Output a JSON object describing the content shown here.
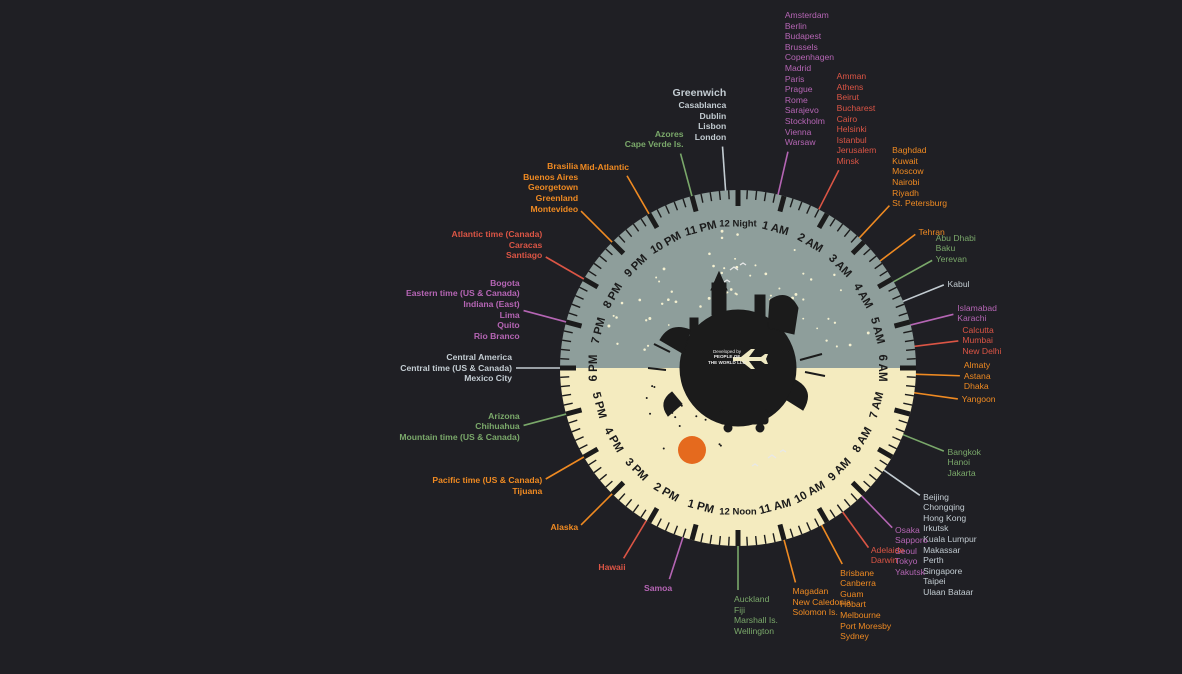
{
  "credit": {
    "line1": "Developed by",
    "line2": "PEOPLE OF",
    "line3": "THE WORLD LLC"
  },
  "colors": {
    "background": "#1f1f24",
    "night": "#8e9e9b",
    "day": "#f4ebbf",
    "sun": "#e56a1e",
    "moon": "#efe9c2",
    "ink": "#1b1b1b",
    "purple": "#b565b4",
    "red": "#db5545",
    "orange": "#ef8a22",
    "green": "#7aa86a",
    "slate": "#c3ccd2"
  },
  "hours": [
    {
      "label": "12 Night",
      "angle": 0
    },
    {
      "label": "1 AM",
      "angle": 15
    },
    {
      "label": "2 AM",
      "angle": 30
    },
    {
      "label": "3 AM",
      "angle": 45
    },
    {
      "label": "4 AM",
      "angle": 60
    },
    {
      "label": "5 AM",
      "angle": 75
    },
    {
      "label": "6 AM",
      "angle": 90
    },
    {
      "label": "7 AM",
      "angle": 105
    },
    {
      "label": "8 AM",
      "angle": 120
    },
    {
      "label": "9 AM",
      "angle": 135
    },
    {
      "label": "10 AM",
      "angle": 150
    },
    {
      "label": "11 AM",
      "angle": 165
    },
    {
      "label": "12 Noon",
      "angle": 180
    },
    {
      "label": "1 PM",
      "angle": 195
    },
    {
      "label": "2 PM",
      "angle": 210
    },
    {
      "label": "3 PM",
      "angle": 225
    },
    {
      "label": "4 PM",
      "angle": 240
    },
    {
      "label": "5 PM",
      "angle": 255
    },
    {
      "label": "6 PM",
      "angle": 270
    },
    {
      "label": "7 PM",
      "angle": 285
    },
    {
      "label": "8 PM",
      "angle": 300
    },
    {
      "label": "9 PM",
      "angle": 315
    },
    {
      "label": "10 PM",
      "angle": 330
    },
    {
      "label": "11 PM",
      "angle": 345
    }
  ],
  "zones": [
    {
      "id": "greenwich",
      "color": "slate",
      "angle": -4,
      "lines": [
        "Greenwich",
        "Casablanca",
        "Dublin",
        "Lisbon",
        "London"
      ]
    },
    {
      "id": "europe-central",
      "color": "purple",
      "angle": 13,
      "lines": [
        "Amsterdam",
        "Berlin",
        "Budapest",
        "Brussels",
        "Copenhagen",
        "Madrid",
        "Paris",
        "Prague",
        "Rome",
        "Sarajevo",
        "Stockholm",
        "Vienna",
        "Warsaw"
      ]
    },
    {
      "id": "europe-east",
      "color": "red",
      "angle": 27,
      "lines": [
        "Amman",
        "Athens",
        "Beirut",
        "Bucharest",
        "Cairo",
        "Helsinki",
        "Istanbul",
        "Jerusalem",
        "Minsk"
      ]
    },
    {
      "id": "moscow",
      "color": "orange",
      "angle": 43,
      "lines": [
        "Baghdad",
        "Kuwait",
        "Moscow",
        "Nairobi",
        "Riyadh",
        "St. Petersburg"
      ]
    },
    {
      "id": "tehran",
      "color": "orange",
      "angle": 53,
      "lines": [
        "Tehran"
      ]
    },
    {
      "id": "gulf",
      "color": "green",
      "angle": 61,
      "lines": [
        "Abu Dhabi",
        "Baku",
        "Yerevan"
      ]
    },
    {
      "id": "kabul",
      "color": "slate",
      "angle": 68,
      "lines": [
        "Kabul"
      ]
    },
    {
      "id": "pakistan",
      "color": "purple",
      "angle": 76,
      "lines": [
        "Islamabad",
        "Karachi"
      ]
    },
    {
      "id": "india",
      "color": "red",
      "angle": 83,
      "lines": [
        "Calcutta",
        "Mumbai",
        "New Delhi"
      ]
    },
    {
      "id": "almaty",
      "color": "orange",
      "angle": 92,
      "lines": [
        "Almaty",
        "Astana",
        "Dhaka"
      ]
    },
    {
      "id": "yangoon",
      "color": "orange",
      "angle": 98,
      "lines": [
        "Yangoon"
      ]
    },
    {
      "id": "bangkok",
      "color": "green",
      "angle": 112,
      "lines": [
        "Bangkok",
        "Hanoi",
        "Jakarta"
      ]
    },
    {
      "id": "beijing",
      "color": "slate",
      "angle": 125,
      "lines": [
        "Beijing",
        "Chongqing",
        "Hong Kong",
        "Irkutsk",
        "Kuala Lumpur",
        "Makassar",
        "Perth",
        "Singapore",
        "Taipei",
        "Ulaan Bataar"
      ]
    },
    {
      "id": "tokyo",
      "color": "purple",
      "angle": 136,
      "lines": [
        "Osaka",
        "Sapporo",
        "Seoul",
        "Tokyo",
        "Yakutsk"
      ]
    },
    {
      "id": "adelaide",
      "color": "red",
      "angle": 144,
      "lines": [
        "Adelaide",
        "Darwin"
      ]
    },
    {
      "id": "sydney",
      "color": "orange",
      "angle": 152,
      "lines": [
        "Brisbane",
        "Canberra",
        "Guam",
        "Hobart",
        "Melbourne",
        "Port Moresby",
        "Sydney"
      ]
    },
    {
      "id": "magadan",
      "color": "orange",
      "angle": 165,
      "lines": [
        "Magadan",
        "New Caledonia",
        "Solomon Is."
      ]
    },
    {
      "id": "auckland",
      "color": "green",
      "angle": 180,
      "lines": [
        "Auckland",
        "Fiji",
        "Marshall Is.",
        "Wellington"
      ]
    },
    {
      "id": "samoa",
      "color": "purple",
      "angle": 198,
      "lines": [
        "Samoa"
      ]
    },
    {
      "id": "hawaii",
      "color": "red",
      "angle": 211,
      "lines": [
        "Hawaii"
      ]
    },
    {
      "id": "alaska",
      "color": "orange",
      "angle": 225,
      "lines": [
        "Alaska"
      ]
    },
    {
      "id": "pacific",
      "color": "orange",
      "angle": 240,
      "lines": [
        "Pacific time (US & Canada)",
        "Tijuana"
      ]
    },
    {
      "id": "mountain",
      "color": "green",
      "angle": 255,
      "lines": [
        "Arizona",
        "Chihuahua",
        "Mountain time (US & Canada)"
      ]
    },
    {
      "id": "central",
      "color": "slate",
      "angle": 270,
      "lines": [
        "Central America",
        "Central time (US & Canada)",
        "Mexico City"
      ]
    },
    {
      "id": "eastern",
      "color": "purple",
      "angle": 285,
      "lines": [
        "Bogota",
        "Eastern time (US & Canada)",
        "Indiana (East)",
        "Lima",
        "Quito",
        "Rio Branco"
      ]
    },
    {
      "id": "atlantic",
      "color": "red",
      "angle": 300,
      "lines": [
        "Atlantic time (Canada)",
        "Caracas",
        "Santiago"
      ]
    },
    {
      "id": "brasilia",
      "color": "orange",
      "angle": 315,
      "lines": [
        "Brasilia",
        "Buenos Aires",
        "Georgetown",
        "Greenland",
        "Montevideo"
      ]
    },
    {
      "id": "mid-atlantic",
      "color": "orange",
      "angle": 330,
      "lines": [
        "Mid-Atlantic"
      ]
    },
    {
      "id": "azores",
      "color": "green",
      "angle": 345,
      "lines": [
        "Azores",
        "Cape Verde Is."
      ]
    }
  ]
}
